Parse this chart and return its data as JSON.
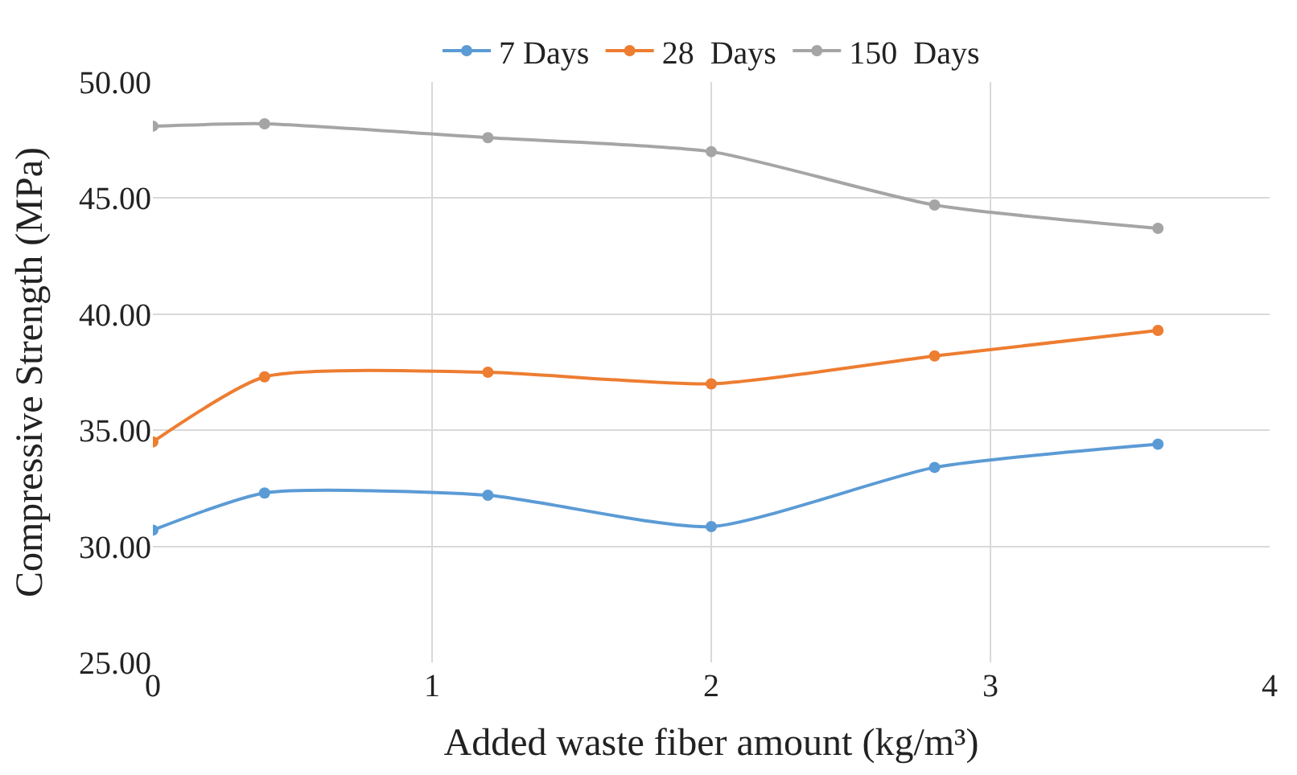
{
  "chart_data": {
    "type": "line",
    "xlabel": "Added waste fiber amount (kg/m³)",
    "ylabel": "Compressive Strength (MPa)",
    "x": [
      0,
      0.4,
      1.2,
      2,
      2.8,
      3.6
    ],
    "series": [
      {
        "name": "7 Days",
        "color": "#5b9bd5",
        "values": [
          30.7,
          32.3,
          32.2,
          30.85,
          33.4,
          34.4
        ]
      },
      {
        "name": "28  Days",
        "color": "#ed7d31",
        "values": [
          34.5,
          37.3,
          37.5,
          37.0,
          38.2,
          39.3
        ]
      },
      {
        "name": "150  Days",
        "color": "#a5a5a5",
        "values": [
          48.1,
          48.2,
          47.6,
          47.0,
          44.7,
          43.7
        ]
      }
    ],
    "xlim": [
      0,
      4
    ],
    "xticks": [
      0,
      1,
      2,
      3,
      4
    ],
    "ylim": [
      25,
      50
    ],
    "yticks": [
      {
        "value": 25,
        "label": "25.00"
      },
      {
        "value": 30,
        "label": "30.00"
      },
      {
        "value": 35,
        "label": "35.00"
      },
      {
        "value": 40,
        "label": "40.00"
      },
      {
        "value": 45,
        "label": "45.00"
      },
      {
        "value": 50,
        "label": "50.00"
      }
    ],
    "grid": true,
    "legend": "top",
    "marker": "circle",
    "line_style": "solid"
  }
}
